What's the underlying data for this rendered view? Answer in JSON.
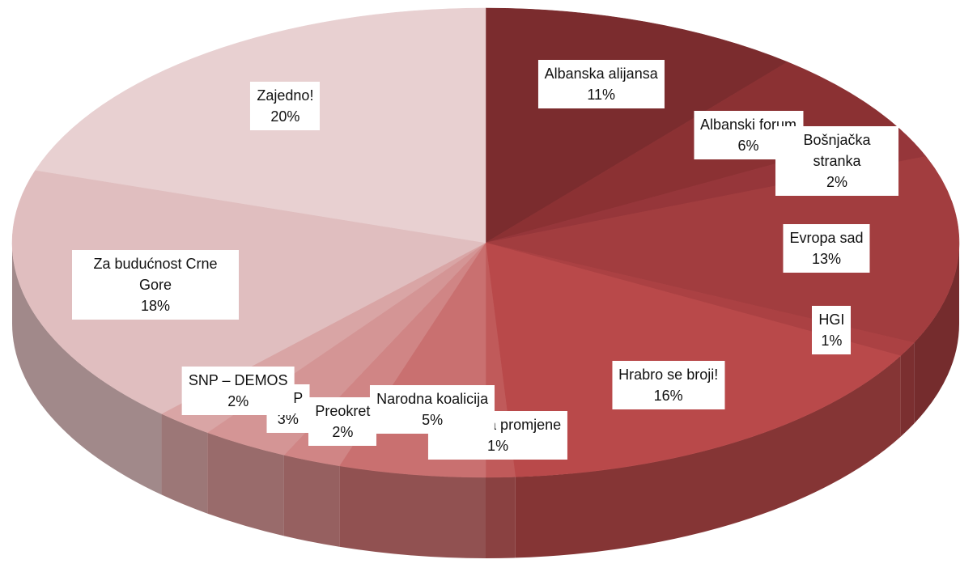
{
  "chart_data": {
    "type": "pie3d",
    "categories": [
      "Albanska alijansa",
      "Albanski forum",
      "Bošnjačka stranka",
      "Evropa sad",
      "HGI",
      "Hrabro se broji!",
      "Pokret za promjene",
      "Narodna koalicija",
      "Preokret",
      "SDP",
      "SNP – DEMOS",
      "Za budućnost Crne Gore",
      "Zajedno!"
    ],
    "values": [
      11,
      6,
      2,
      13,
      1,
      16,
      1,
      5,
      2,
      3,
      2,
      18,
      20
    ],
    "value_labels": [
      "11%",
      "6%",
      "2%",
      "13%",
      "1%",
      "16%",
      "1%",
      "5%",
      "2%",
      "3%",
      "2%",
      "18%",
      "20%"
    ],
    "colors": [
      "#7b2c2e",
      "#8b3133",
      "#96363a",
      "#a23d3f",
      "#ab4143",
      "#b9494a",
      "#c05a5a",
      "#c97070",
      "#d08585",
      "#d49595",
      "#d9a5a5",
      "#e0bebf",
      "#e8d0d1"
    ]
  }
}
